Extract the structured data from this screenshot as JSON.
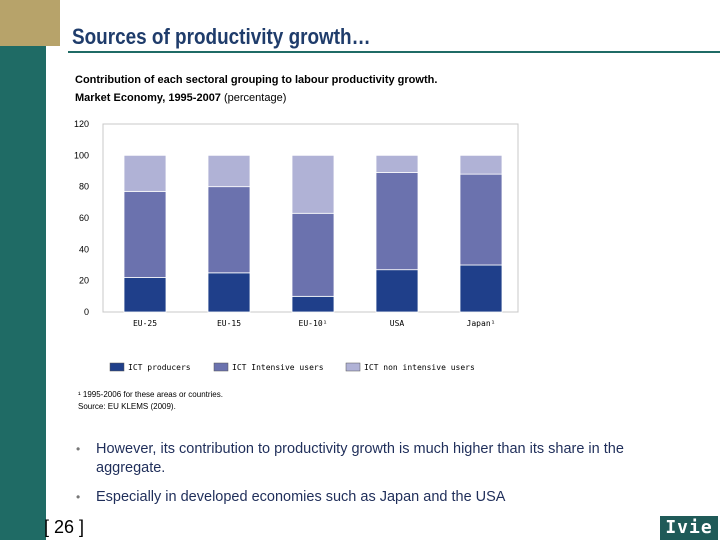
{
  "slide": {
    "title": "Sources of productivity growth…",
    "subtitle_line1": "Contribution of each sectoral grouping to labour productivity growth.",
    "subtitle_line2_bold": "Market Economy, 1995-2007 ",
    "subtitle_line2_plain": "(percentage)",
    "footnote_line1": "¹ 1995-2006 for these areas or countries.",
    "footnote_line2": "Source: EU KLEMS (2009).",
    "bullets": [
      "However, its contribution to productivity growth is much higher than its share in the aggregate.",
      "Especially in developed economies such as Japan and the USA"
    ],
    "bullet_symbol": "•",
    "page_number": "[ 26 ]",
    "logo_text": "Ivie"
  },
  "chart_data": {
    "type": "bar",
    "stacked": true,
    "categories": [
      "EU-25",
      "EU-15",
      "EU-10¹",
      "USA",
      "Japan¹"
    ],
    "series": [
      {
        "name": "ICT producers",
        "color": "#1f3f8a",
        "values": [
          22,
          25,
          10,
          27,
          30
        ]
      },
      {
        "name": "ICT Intensive users",
        "color": "#6b72ae",
        "values": [
          55,
          55,
          53,
          62,
          58
        ]
      },
      {
        "name": "ICT non intensive users",
        "color": "#b0b2d6",
        "values": [
          23,
          20,
          37,
          11,
          12
        ]
      }
    ],
    "ylim": [
      0,
      120
    ],
    "yticks": [
      0,
      20,
      40,
      60,
      80,
      100,
      120
    ],
    "xlabel": "",
    "ylabel": "",
    "legend_position": "bottom",
    "grid": false
  }
}
